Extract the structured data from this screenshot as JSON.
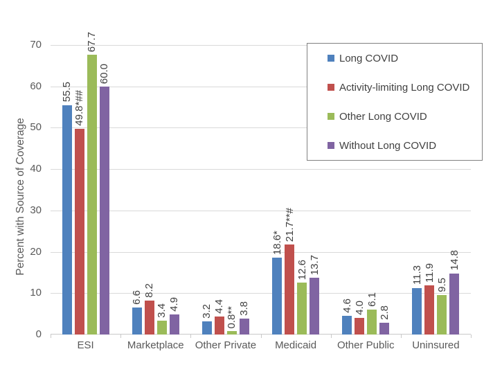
{
  "chart_data": {
    "type": "bar",
    "title": "",
    "ylabel": "Percent with Source of Coverage",
    "xlabel": "",
    "ylim": [
      0,
      70
    ],
    "yticks": [
      0,
      10,
      20,
      30,
      40,
      50,
      60,
      70
    ],
    "grid": true,
    "legend_position": "top-right-overlay",
    "categories": [
      "ESI",
      "Marketplace",
      "Other Private",
      "Medicaid",
      "Other Public",
      "Uninsured"
    ],
    "series": [
      {
        "name": "Long COVID",
        "color": "#4F81BD",
        "values": [
          55.5,
          6.6,
          3.2,
          18.6,
          4.6,
          11.3
        ],
        "labels": [
          "55.5",
          "6.6",
          "3.2",
          "18.6*",
          "4.6",
          "11.3"
        ]
      },
      {
        "name": "Activity-limiting Long COVID",
        "color": "#C0504D",
        "values": [
          49.8,
          8.2,
          4.4,
          21.7,
          4.0,
          11.9
        ],
        "labels": [
          "49.8*##",
          "8.2",
          "4.4",
          "21.7**#",
          "4.0",
          "11.9"
        ]
      },
      {
        "name": "Other Long COVID",
        "color": "#9BBB59",
        "values": [
          67.7,
          3.4,
          0.8,
          12.6,
          6.1,
          9.5
        ],
        "labels": [
          "67.7",
          "3.4",
          "0.8**",
          "12.6",
          "6.1",
          "9.5"
        ]
      },
      {
        "name": "Without Long COVID",
        "color": "#8064A2",
        "values": [
          60.0,
          4.9,
          3.8,
          13.7,
          2.8,
          14.8
        ],
        "labels": [
          "60.0",
          "4.9",
          "3.8",
          "13.7",
          "2.8",
          "14.8"
        ]
      }
    ]
  },
  "colors": {
    "background": "#FFFFFF",
    "gridline": "#D9D9D9",
    "axis_line": "#C9C9C9",
    "tick_text": "#595959",
    "category_text": "#595959",
    "axis_title_text": "#595959",
    "value_label_text": "#404040",
    "legend_text": "#404040",
    "legend_border": "#7F7F7F"
  }
}
